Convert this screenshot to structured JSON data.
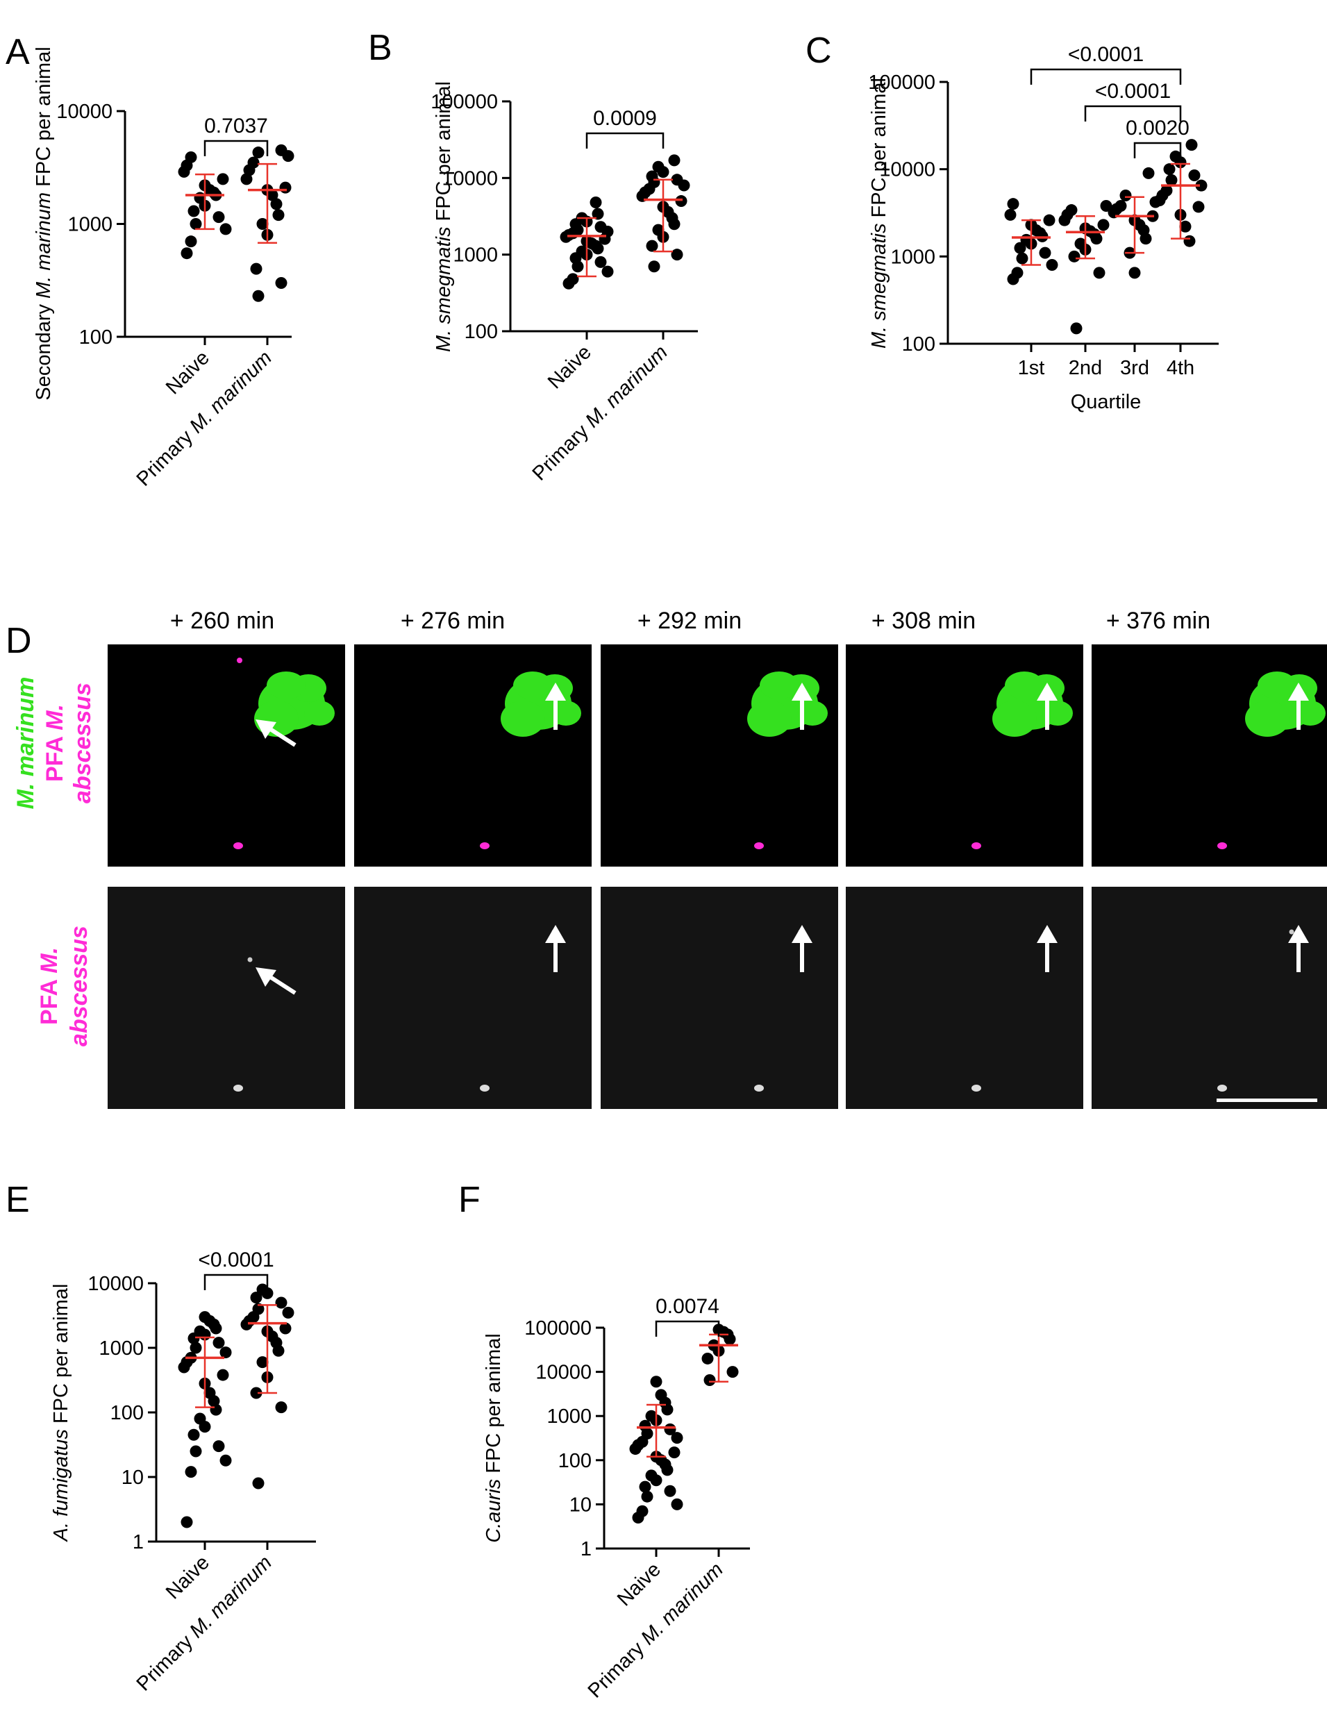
{
  "panel_letters": [
    "A",
    "B",
    "C",
    "D",
    "E",
    "F"
  ],
  "colors": {
    "dot": "#000000",
    "errbar": "#e8332a",
    "green": "#35e01f",
    "magenta": "#ff2bd6",
    "gray_bg": "#141414",
    "black_bg": "#000000",
    "arrow": "#ffffff"
  },
  "chart_data": [
    {
      "panel": "A",
      "type": "scatter",
      "scale": "log",
      "ylabel_parts": [
        "Secondary ",
        "M. marinum",
        " FPC per animal"
      ],
      "ylim": [
        100,
        10000
      ],
      "yticks": [
        "100",
        "1000",
        "10000"
      ],
      "categories": [
        "Naive",
        "Primary M. marinum"
      ],
      "xtick_parts": [
        [
          "Naive",
          ""
        ],
        [
          "Primary ",
          "M. marinum"
        ]
      ],
      "series": [
        {
          "name": "Naive",
          "values": [
            550,
            700,
            900,
            1000,
            1150,
            1300,
            1450,
            1700,
            1800,
            1900,
            2000,
            2200,
            2500,
            2900,
            3300,
            3900
          ],
          "mean": 1800,
          "sd": [
            900,
            2750
          ]
        },
        {
          "name": "Primary M. marinum",
          "values": [
            230,
            300,
            400,
            800,
            1000,
            1200,
            1500,
            1800,
            2000,
            2100,
            2500,
            3000,
            3500,
            4000,
            4300,
            4500
          ],
          "mean": 2000,
          "sd": [
            680,
            3400
          ]
        }
      ],
      "comparisons": [
        {
          "from": 0,
          "to": 1,
          "label": "0.7037"
        }
      ]
    },
    {
      "panel": "B",
      "type": "scatter",
      "scale": "log",
      "ylabel_parts": [
        "",
        "M. smegmatis",
        " FPC per animal"
      ],
      "ylim": [
        100,
        100000
      ],
      "yticks": [
        "100",
        "1000",
        "10000",
        "100000"
      ],
      "categories": [
        "Naive",
        "Primary M. marinum"
      ],
      "xtick_parts": [
        [
          "Naive",
          ""
        ],
        [
          "Primary ",
          "M. marinum"
        ]
      ],
      "series": [
        {
          "name": "Naive",
          "values": [
            420,
            480,
            600,
            700,
            800,
            900,
            1000,
            1100,
            1200,
            1300,
            1400,
            1500,
            1600,
            1700,
            1800,
            1900,
            2000,
            2100,
            2300,
            2500,
            2700,
            3000,
            3400,
            4800
          ],
          "mean": 1750,
          "sd": [
            520,
            3000
          ]
        },
        {
          "name": "Primary M. marinum",
          "values": [
            700,
            1000,
            1300,
            1700,
            2100,
            2500,
            3000,
            3600,
            4200,
            5000,
            5800,
            6500,
            7200,
            8000,
            8800,
            9500,
            10500,
            12000,
            14000,
            17000
          ],
          "mean": 5200,
          "sd": [
            1100,
            9500
          ]
        }
      ],
      "comparisons": [
        {
          "from": 0,
          "to": 1,
          "label": "0.0009"
        }
      ]
    },
    {
      "panel": "C",
      "type": "scatter",
      "scale": "log",
      "ylabel_parts": [
        "",
        "M. smegmatis",
        " FPC per animal"
      ],
      "ylim": [
        100,
        100000
      ],
      "yticks": [
        "100",
        "1000",
        "10000",
        "100000"
      ],
      "categories": [
        "1st",
        "2nd",
        "3rd",
        "4th"
      ],
      "xlabel": "Quartile",
      "series": [
        {
          "name": "1st",
          "values": [
            550,
            650,
            800,
            950,
            1100,
            1250,
            1400,
            1550,
            1700,
            1850,
            2000,
            2300,
            2600,
            3000,
            4000
          ],
          "mean": 1650,
          "sd": [
            800,
            2600
          ]
        },
        {
          "name": "2nd",
          "values": [
            150,
            650,
            1000,
            1200,
            1400,
            1600,
            1800,
            1950,
            2100,
            2300,
            2600,
            3000,
            3400,
            3800
          ],
          "mean": 1900,
          "sd": [
            950,
            2900
          ]
        },
        {
          "name": "3rd",
          "values": [
            650,
            1100,
            1600,
            2000,
            2300,
            2600,
            2900,
            3200,
            3500,
            3800,
            4200,
            5000,
            9000
          ],
          "mean": 2900,
          "sd": [
            1100,
            4800
          ]
        },
        {
          "name": "4th",
          "values": [
            1500,
            2200,
            3000,
            3700,
            4400,
            5000,
            5700,
            6500,
            7500,
            8500,
            10000,
            12000,
            14000,
            19000
          ],
          "mean": 6500,
          "sd": [
            1600,
            11500
          ]
        }
      ],
      "comparisons": [
        {
          "from": 0,
          "to": 3,
          "label": "<0.0001"
        },
        {
          "from": 1,
          "to": 3,
          "label": "<0.0001"
        },
        {
          "from": 2,
          "to": 3,
          "label": "0.0020"
        }
      ]
    },
    {
      "panel": "E",
      "type": "scatter",
      "scale": "log",
      "ylabel_parts": [
        "",
        "A. fumigatus",
        " FPC per animal"
      ],
      "ylim": [
        1,
        10000
      ],
      "yticks": [
        "1",
        "10",
        "100",
        "1000",
        "10000"
      ],
      "categories": [
        "Naive",
        "Primary M. marinum"
      ],
      "xtick_parts": [
        [
          "Naive",
          ""
        ],
        [
          "Primary ",
          "M. marinum"
        ]
      ],
      "series": [
        {
          "name": "Naive",
          "values": [
            2,
            12,
            18,
            25,
            30,
            45,
            60,
            80,
            110,
            150,
            200,
            280,
            380,
            500,
            600,
            700,
            850,
            1000,
            1200,
            1400,
            1600,
            1800,
            2000,
            2300,
            2600,
            3000
          ],
          "mean": 700,
          "sd": [
            120,
            1450
          ]
        },
        {
          "name": "Primary M. marinum",
          "values": [
            8,
            120,
            200,
            350,
            600,
            900,
            1200,
            1500,
            1800,
            2000,
            2300,
            2600,
            3000,
            3500,
            4000,
            5000,
            6000,
            7000,
            8000
          ],
          "mean": 2400,
          "sd": [
            200,
            4600
          ]
        }
      ],
      "comparisons": [
        {
          "from": 0,
          "to": 1,
          "label": "<0.0001"
        }
      ]
    },
    {
      "panel": "F",
      "type": "scatter",
      "scale": "log",
      "ylabel_parts": [
        "",
        "C.auris",
        " FPC per animal"
      ],
      "ylim": [
        1,
        100000
      ],
      "yticks": [
        "1",
        "10",
        "100",
        "1000",
        "10000",
        "100000"
      ],
      "categories": [
        "Naive",
        "Primary M. marinum"
      ],
      "xtick_parts": [
        [
          "Naive",
          ""
        ],
        [
          "Primary ",
          "M. marinum"
        ]
      ],
      "series": [
        {
          "name": "Naive",
          "values": [
            5,
            7,
            10,
            15,
            20,
            25,
            35,
            45,
            60,
            80,
            100,
            120,
            150,
            180,
            220,
            260,
            320,
            400,
            500,
            600,
            800,
            1000,
            1400,
            2000,
            3000,
            6000
          ],
          "mean": 550,
          "sd": [
            120,
            1800
          ]
        },
        {
          "name": "Primary M. marinum",
          "values": [
            6500,
            10000,
            20000,
            30000,
            40000,
            55000,
            70000,
            80000,
            90000
          ],
          "mean": 40000,
          "sd": [
            6000,
            70000
          ]
        }
      ],
      "comparisons": [
        {
          "from": 0,
          "to": 1,
          "label": "0.0074"
        }
      ]
    }
  ],
  "microscopy": {
    "timepoints": [
      "+ 260 min",
      "+ 276 min",
      "+ 292 min",
      "+ 308 min",
      "+ 376 min"
    ],
    "top_row_label": {
      "line1": "M. marinum",
      "line2_prefix": "PFA ",
      "line2_italic": "M.",
      "line3": "abscessus"
    },
    "bottom_row_label": {
      "line1_prefix": "PFA ",
      "line1_italic": "M.",
      "line2": "abscessus"
    }
  }
}
